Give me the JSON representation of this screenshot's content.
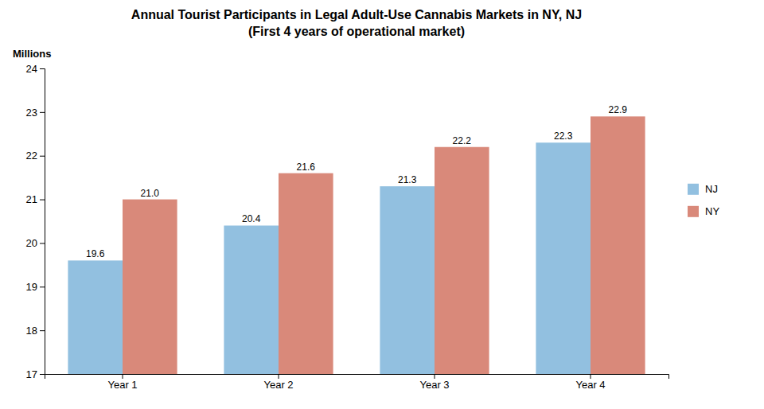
{
  "chart_data": {
    "type": "bar",
    "title": "Annual Tourist Participants in Legal Adult-Use Cannabis Markets in NY, NJ",
    "subtitle": "(First 4 years of operational market)",
    "ylabel": "Millions",
    "categories": [
      "Year 1",
      "Year 2",
      "Year 3",
      "Year 4"
    ],
    "series": [
      {
        "name": "NJ",
        "color": "#92C0E0",
        "values": [
          19.6,
          20.4,
          21.3,
          22.3
        ],
        "value_labels": [
          "19.6",
          "20.4",
          "21.3",
          "22.3"
        ]
      },
      {
        "name": "NY",
        "color": "#D9897A",
        "values": [
          21.0,
          21.6,
          22.2,
          22.9
        ],
        "value_labels": [
          "21.0",
          "21.6",
          "22.2",
          "22.9"
        ]
      }
    ],
    "ylim": [
      17,
      24
    ],
    "yticks": [
      17,
      18,
      19,
      20,
      21,
      22,
      23,
      24
    ],
    "data_labels": true,
    "legend": "right",
    "grid": false
  }
}
